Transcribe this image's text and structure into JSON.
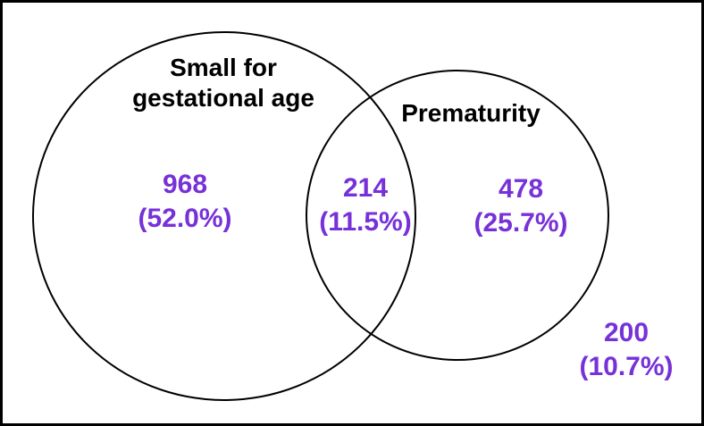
{
  "venn": {
    "left_set": {
      "label_line1": "Small for",
      "label_line2": "gestational age",
      "count": "968",
      "percent": "(52.0%)"
    },
    "right_set": {
      "label": "Prematurity",
      "count": "478",
      "percent": "(25.7%)"
    },
    "intersection": {
      "count": "214",
      "percent": "(11.5%)"
    },
    "outside": {
      "count": "200",
      "percent": "(10.7%)"
    },
    "colors": {
      "value_text": "#7731D8",
      "label_text": "#000000",
      "outline": "#000000",
      "background": "#FFFFFF"
    }
  }
}
